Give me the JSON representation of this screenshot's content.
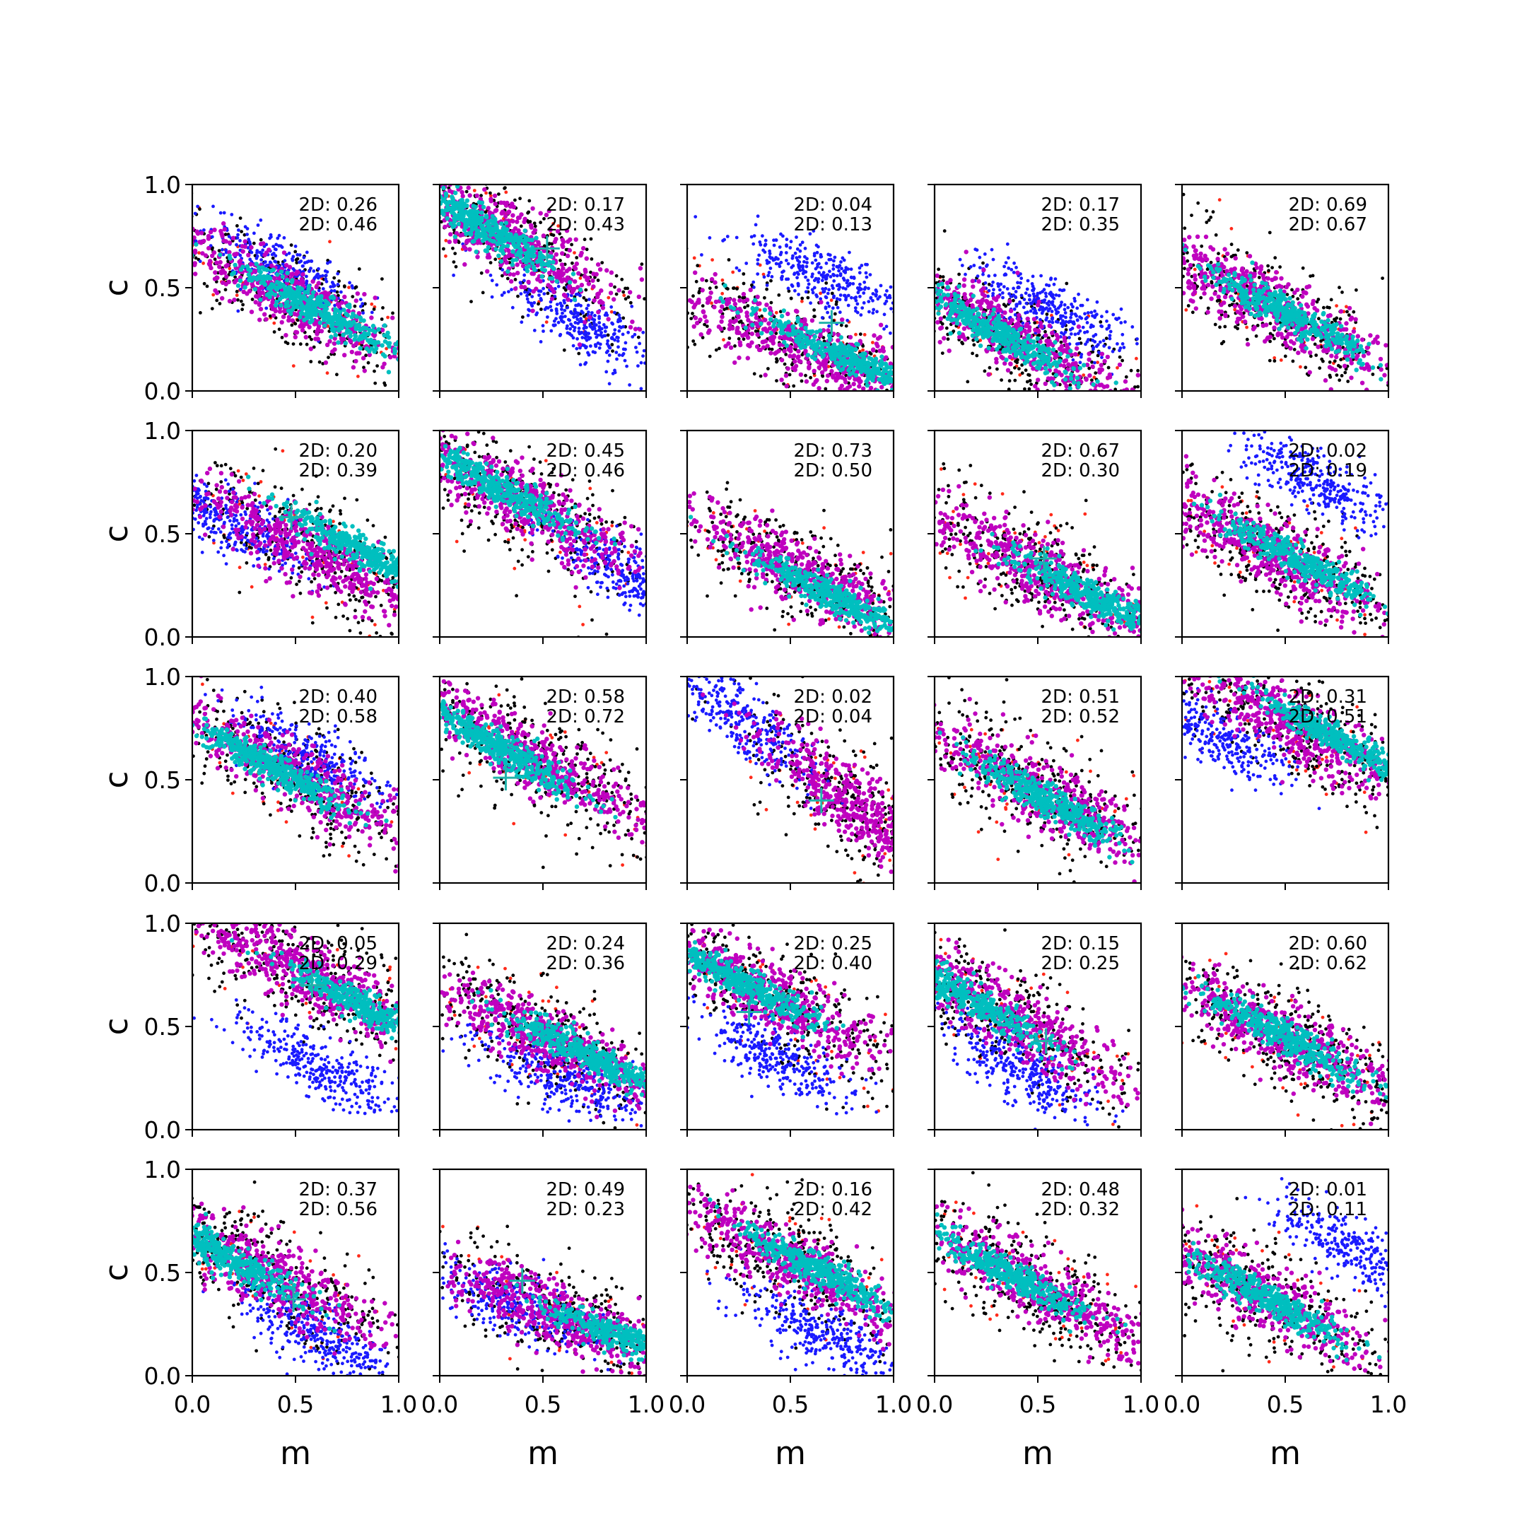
{
  "figure": {
    "rows": 5,
    "cols": 5,
    "xlabel": "m",
    "ylabel": "c",
    "xlim": [
      0,
      1
    ],
    "ylim": [
      0,
      1
    ],
    "xticks": [
      "0.0",
      "0.5",
      "1.0"
    ],
    "yticks": [
      "0.0",
      "0.5",
      "1.0"
    ],
    "grid": false,
    "legend": "none"
  },
  "colors": {
    "black": "#000000",
    "red": "#ff2a1a",
    "blue": "#1a1aff",
    "magenta": "#bf00bf",
    "cyan": "#00bfbf",
    "marker": "#20b2aa"
  },
  "chart_data": {
    "type": "scatter",
    "series_styles": [
      {
        "color": "red"
      },
      {
        "color": "black"
      },
      {
        "color": "blue"
      },
      {
        "color": "magenta"
      },
      {
        "color": "cyan"
      }
    ],
    "panels": [
      {
        "row": 0,
        "col": 0,
        "annot": [
          "2D: 0.26",
          "2D: 0.46"
        ],
        "cloud": {
          "cx": 0.45,
          "cy": 0.47,
          "slope": -0.55
        },
        "inner": {
          "cx": 0.6,
          "cy": 0.4
        },
        "blue": {
          "cx": 0.45,
          "cy": 0.57
        },
        "marker": null
      },
      {
        "row": 0,
        "col": 1,
        "annot": [
          "2D: 0.17",
          "2D: 0.43"
        ],
        "cloud": {
          "cx": 0.3,
          "cy": 0.75,
          "slope": -0.6
        },
        "inner": {
          "cx": 0.2,
          "cy": 0.8
        },
        "blue": {
          "cx": 0.7,
          "cy": 0.32
        },
        "marker": [
          0.52,
          0.69
        ]
      },
      {
        "row": 0,
        "col": 2,
        "annot": [
          "2D: 0.04",
          "2D: 0.13"
        ],
        "cloud": {
          "cx": 0.6,
          "cy": 0.2,
          "slope": -0.45
        },
        "inner": {
          "cx": 0.8,
          "cy": 0.15
        },
        "blue": {
          "cx": 0.65,
          "cy": 0.55
        },
        "marker": [
          0.7,
          0.33
        ]
      },
      {
        "row": 0,
        "col": 3,
        "annot": [
          "2D: 0.17",
          "2D: 0.35"
        ],
        "cloud": {
          "cx": 0.4,
          "cy": 0.25,
          "slope": -0.55
        },
        "inner": {
          "cx": 0.3,
          "cy": 0.28
        },
        "blue": {
          "cx": 0.55,
          "cy": 0.4
        },
        "marker": null
      },
      {
        "row": 0,
        "col": 4,
        "annot": [
          "2D: 0.69",
          "2D: 0.67"
        ],
        "cloud": {
          "cx": 0.45,
          "cy": 0.4,
          "slope": -0.55
        },
        "inner": {
          "cx": 0.5,
          "cy": 0.38
        },
        "blue": null,
        "marker": null
      },
      {
        "row": 1,
        "col": 0,
        "annot": [
          "2D: 0.20",
          "2D: 0.39"
        ],
        "cloud": {
          "cx": 0.6,
          "cy": 0.4,
          "slope": -0.55
        },
        "inner": {
          "cx": 0.85,
          "cy": 0.4
        },
        "blue": {
          "cx": 0.2,
          "cy": 0.55
        },
        "marker": [
          0.48,
          0.58
        ]
      },
      {
        "row": 1,
        "col": 1,
        "annot": [
          "2D: 0.45",
          "2D: 0.46"
        ],
        "cloud": {
          "cx": 0.4,
          "cy": 0.65,
          "slope": -0.55
        },
        "inner": {
          "cx": 0.3,
          "cy": 0.72
        },
        "blue": {
          "cx": 0.9,
          "cy": 0.3
        },
        "marker": null
      },
      {
        "row": 1,
        "col": 2,
        "annot": [
          "2D: 0.73",
          "2D: 0.50"
        ],
        "cloud": {
          "cx": 0.55,
          "cy": 0.3,
          "slope": -0.5
        },
        "inner": {
          "cx": 0.7,
          "cy": 0.2
        },
        "blue": null,
        "marker": null
      },
      {
        "row": 1,
        "col": 3,
        "annot": [
          "2D: 0.67",
          "2D: 0.30"
        ],
        "cloud": {
          "cx": 0.55,
          "cy": 0.3,
          "slope": -0.5
        },
        "inner": {
          "cx": 0.75,
          "cy": 0.2
        },
        "blue": null,
        "marker": [
          0.53,
          0.38
        ]
      },
      {
        "row": 1,
        "col": 4,
        "annot": [
          "2D: 0.02",
          "2D: 0.19"
        ],
        "cloud": {
          "cx": 0.45,
          "cy": 0.4,
          "slope": -0.55
        },
        "inner": {
          "cx": 0.55,
          "cy": 0.38
        },
        "blue": {
          "cx": 0.65,
          "cy": 0.75
        },
        "marker": null
      },
      {
        "row": 2,
        "col": 0,
        "annot": [
          "2D: 0.40",
          "2D: 0.58"
        ],
        "cloud": {
          "cx": 0.45,
          "cy": 0.55,
          "slope": -0.55
        },
        "inner": {
          "cx": 0.4,
          "cy": 0.55
        },
        "blue": {
          "cx": 0.55,
          "cy": 0.62
        },
        "marker": null
      },
      {
        "row": 2,
        "col": 1,
        "annot": [
          "2D: 0.58",
          "2D: 0.72"
        ],
        "cloud": {
          "cx": 0.45,
          "cy": 0.6,
          "slope": -0.6
        },
        "inner": {
          "cx": 0.3,
          "cy": 0.65
        },
        "blue": null,
        "marker": [
          0.32,
          0.51
        ]
      },
      {
        "row": 2,
        "col": 2,
        "annot": [
          "2D: 0.02",
          "2D: 0.04"
        ],
        "cloud": {
          "cx": 0.85,
          "cy": 0.35,
          "slope": -0.8
        },
        "inner": null,
        "blue": {
          "cx": 0.25,
          "cy": 0.8
        },
        "marker": [
          0.65,
          0.4
        ]
      },
      {
        "row": 2,
        "col": 3,
        "annot": [
          "2D: 0.51",
          "2D: 0.52"
        ],
        "cloud": {
          "cx": 0.5,
          "cy": 0.45,
          "slope": -0.55
        },
        "inner": {
          "cx": 0.55,
          "cy": 0.4
        },
        "blue": null,
        "marker": null
      },
      {
        "row": 2,
        "col": 4,
        "annot": [
          "2D: 0.31",
          "2D: 0.51"
        ],
        "cloud": {
          "cx": 0.55,
          "cy": 0.75,
          "slope": -0.55
        },
        "inner": {
          "cx": 0.75,
          "cy": 0.7
        },
        "blue": {
          "cx": 0.15,
          "cy": 0.72
        },
        "marker": null
      },
      {
        "row": 3,
        "col": 0,
        "annot": [
          "2D: 0.05",
          "2D: 0.29"
        ],
        "cloud": {
          "cx": 0.55,
          "cy": 0.75,
          "slope": -0.55
        },
        "inner": {
          "cx": 0.85,
          "cy": 0.58
        },
        "blue": {
          "cx": 0.6,
          "cy": 0.3
        },
        "marker": [
          0.58,
          0.7
        ]
      },
      {
        "row": 3,
        "col": 1,
        "annot": [
          "2D: 0.24",
          "2D: 0.36"
        ],
        "cloud": {
          "cx": 0.5,
          "cy": 0.45,
          "slope": -0.5
        },
        "inner": {
          "cx": 0.7,
          "cy": 0.37
        },
        "blue": {
          "cx": 0.6,
          "cy": 0.25
        },
        "marker": null
      },
      {
        "row": 3,
        "col": 2,
        "annot": [
          "2D: 0.25",
          "2D: 0.40"
        ],
        "cloud": {
          "cx": 0.4,
          "cy": 0.65,
          "slope": -0.55
        },
        "inner": {
          "cx": 0.25,
          "cy": 0.72
        },
        "blue": {
          "cx": 0.45,
          "cy": 0.35
        },
        "marker": [
          0.3,
          0.57
        ]
      },
      {
        "row": 3,
        "col": 3,
        "annot": [
          "2D: 0.15",
          "2D: 0.25"
        ],
        "cloud": {
          "cx": 0.35,
          "cy": 0.55,
          "slope": -0.6
        },
        "inner": {
          "cx": 0.15,
          "cy": 0.65
        },
        "blue": {
          "cx": 0.4,
          "cy": 0.3
        },
        "marker": [
          0.54,
          0.43
        ]
      },
      {
        "row": 3,
        "col": 4,
        "annot": [
          "2D: 0.60",
          "2D: 0.62"
        ],
        "cloud": {
          "cx": 0.5,
          "cy": 0.45,
          "slope": -0.55
        },
        "inner": {
          "cx": 0.5,
          "cy": 0.45
        },
        "blue": null,
        "marker": null
      },
      {
        "row": 4,
        "col": 0,
        "annot": [
          "2D: 0.37",
          "2D: 0.56"
        ],
        "cloud": {
          "cx": 0.35,
          "cy": 0.5,
          "slope": -0.55
        },
        "inner": {
          "cx": 0.15,
          "cy": 0.58
        },
        "blue": {
          "cx": 0.6,
          "cy": 0.2
        },
        "marker": [
          0.49,
          0.37
        ]
      },
      {
        "row": 4,
        "col": 1,
        "annot": [
          "2D: 0.49",
          "2D: 0.23"
        ],
        "cloud": {
          "cx": 0.6,
          "cy": 0.28,
          "slope": -0.4
        },
        "inner": {
          "cx": 0.9,
          "cy": 0.18
        },
        "blue": {
          "cx": 0.35,
          "cy": 0.35
        },
        "marker": [
          0.4,
          0.46
        ]
      },
      {
        "row": 4,
        "col": 2,
        "annot": [
          "2D: 0.16",
          "2D: 0.42"
        ],
        "cloud": {
          "cx": 0.5,
          "cy": 0.55,
          "slope": -0.55
        },
        "inner": {
          "cx": 0.65,
          "cy": 0.5
        },
        "blue": {
          "cx": 0.65,
          "cy": 0.2
        },
        "marker": null
      },
      {
        "row": 4,
        "col": 3,
        "annot": [
          "2D: 0.48",
          "2D: 0.32"
        ],
        "cloud": {
          "cx": 0.45,
          "cy": 0.45,
          "slope": -0.55
        },
        "inner": {
          "cx": 0.35,
          "cy": 0.5
        },
        "blue": null,
        "marker": null
      },
      {
        "row": 4,
        "col": 4,
        "annot": [
          "2D: 0.01",
          "2D: 0.11"
        ],
        "cloud": {
          "cx": 0.35,
          "cy": 0.4,
          "slope": -0.55
        },
        "inner": {
          "cx": 0.4,
          "cy": 0.38
        },
        "blue": {
          "cx": 0.85,
          "cy": 0.6
        },
        "marker": null
      }
    ]
  }
}
